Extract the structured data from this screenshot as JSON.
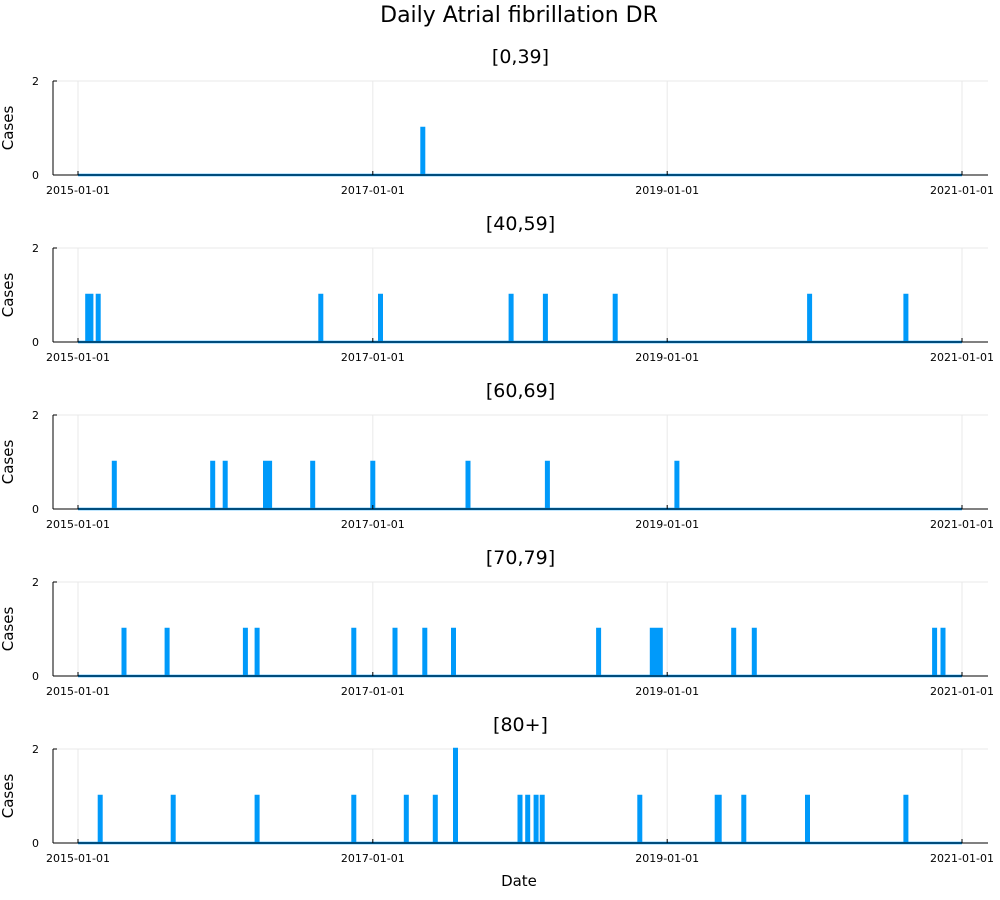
{
  "chart_data": {
    "type": "line",
    "title": "Daily Atrial fibrillation DR",
    "xlabel": "Date",
    "ylabel": "Cases",
    "x_range": [
      "2015-01-01",
      "2021-01-01"
    ],
    "x_ticks": [
      "2015-01-01",
      "2017-01-01",
      "2019-01-01",
      "2021-01-01"
    ],
    "ylim": [
      0,
      2
    ],
    "y_ticks": [
      0,
      2
    ],
    "grid": true,
    "line_color": "#009AFA",
    "panels": [
      {
        "title": "[0,39]",
        "events": [
          {
            "date": "2017-05-05",
            "value": 1
          }
        ]
      },
      {
        "title": "[40,59]",
        "events": [
          {
            "date": "2015-01-25",
            "value": 1
          },
          {
            "date": "2015-02-02",
            "value": 1
          },
          {
            "date": "2015-02-20",
            "value": 1
          },
          {
            "date": "2016-08-25",
            "value": 1
          },
          {
            "date": "2017-01-20",
            "value": 1
          },
          {
            "date": "2017-12-10",
            "value": 1
          },
          {
            "date": "2018-03-05",
            "value": 1
          },
          {
            "date": "2018-08-25",
            "value": 1
          },
          {
            "date": "2019-12-20",
            "value": 1
          },
          {
            "date": "2020-08-15",
            "value": 1
          }
        ]
      },
      {
        "title": "[60,69]",
        "events": [
          {
            "date": "2015-04-01",
            "value": 1
          },
          {
            "date": "2015-12-01",
            "value": 1
          },
          {
            "date": "2016-01-01",
            "value": 1
          },
          {
            "date": "2016-04-10",
            "value": 1
          },
          {
            "date": "2016-04-20",
            "value": 1
          },
          {
            "date": "2016-08-05",
            "value": 1
          },
          {
            "date": "2017-01-01",
            "value": 1
          },
          {
            "date": "2017-08-25",
            "value": 1
          },
          {
            "date": "2018-03-10",
            "value": 1
          },
          {
            "date": "2019-01-25",
            "value": 1
          }
        ]
      },
      {
        "title": "[70,79]",
        "events": [
          {
            "date": "2015-04-25",
            "value": 1
          },
          {
            "date": "2015-08-10",
            "value": 1
          },
          {
            "date": "2016-02-20",
            "value": 1
          },
          {
            "date": "2016-03-20",
            "value": 1
          },
          {
            "date": "2016-11-15",
            "value": 1
          },
          {
            "date": "2017-02-25",
            "value": 1
          },
          {
            "date": "2017-05-10",
            "value": 1
          },
          {
            "date": "2017-07-20",
            "value": 1
          },
          {
            "date": "2018-07-15",
            "value": 1
          },
          {
            "date": "2018-11-25",
            "value": 1
          },
          {
            "date": "2018-12-05",
            "value": 1
          },
          {
            "date": "2018-12-15",
            "value": 1
          },
          {
            "date": "2019-06-15",
            "value": 1
          },
          {
            "date": "2019-08-05",
            "value": 1
          },
          {
            "date": "2020-10-25",
            "value": 1
          },
          {
            "date": "2020-11-15",
            "value": 1
          }
        ]
      },
      {
        "title": "[80+]",
        "events": [
          {
            "date": "2015-02-25",
            "value": 1
          },
          {
            "date": "2015-08-25",
            "value": 1
          },
          {
            "date": "2016-03-20",
            "value": 1
          },
          {
            "date": "2016-11-15",
            "value": 1
          },
          {
            "date": "2017-03-25",
            "value": 1
          },
          {
            "date": "2017-06-05",
            "value": 1
          },
          {
            "date": "2017-07-25",
            "value": 2
          },
          {
            "date": "2018-01-01",
            "value": 1
          },
          {
            "date": "2018-01-20",
            "value": 1
          },
          {
            "date": "2018-02-10",
            "value": 1
          },
          {
            "date": "2018-02-25",
            "value": 1
          },
          {
            "date": "2018-10-25",
            "value": 1
          },
          {
            "date": "2019-05-05",
            "value": 1
          },
          {
            "date": "2019-05-10",
            "value": 1
          },
          {
            "date": "2019-07-10",
            "value": 1
          },
          {
            "date": "2019-12-15",
            "value": 1
          },
          {
            "date": "2020-08-15",
            "value": 1
          }
        ]
      }
    ]
  }
}
